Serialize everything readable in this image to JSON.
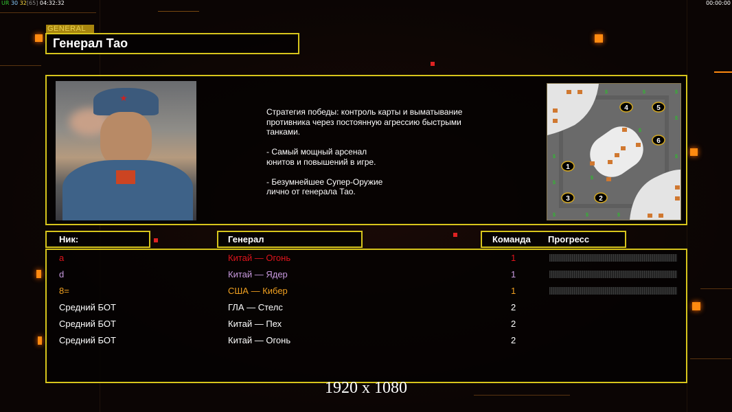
{
  "status_bar": {
    "ur": "UR",
    "v1": "30",
    "v2": "32",
    "bracket": "[65]",
    "clock": "04:32:32",
    "timer": "00:00:00"
  },
  "general": {
    "tab_label": "GENERAL",
    "title": "Генерал Тао",
    "description": "Стратегия победы: контроль карты и выматывание\n противника через постоянную агрессию быстрыми\n танками.\n\n- Самый мощный арсенал\nюнитов и повышений в игре.\n\n- Безумнейшее Супер-Оружие\nлично от генерала Тао."
  },
  "map": {
    "start_positions": [
      "1",
      "2",
      "3",
      "4",
      "5",
      "6"
    ]
  },
  "columns": {
    "nick": "Ник:",
    "general": "Генерал",
    "team": "Команда",
    "progress": "Прогресс"
  },
  "players": [
    {
      "nick": "a",
      "general": "Китай — Огонь",
      "team": "1",
      "color": "#e0141c",
      "progress": 0
    },
    {
      "nick": "d",
      "general": "Китай — Ядер",
      "team": "1",
      "color": "#c89ae0",
      "progress": 0
    },
    {
      "nick": "8=",
      "general": "США — Кибер",
      "team": "1",
      "color": "#f0a020",
      "progress": 0
    },
    {
      "nick": "Средний БОТ",
      "general": "ГЛА — Стелс",
      "team": "2",
      "color": "#ffffff"
    },
    {
      "nick": "Средний БОТ",
      "general": "Китай — Пех",
      "team": "2",
      "color": "#ffffff"
    },
    {
      "nick": "Средний БОТ",
      "general": "Китай — Огонь",
      "team": "2",
      "color": "#ffffff"
    }
  ],
  "resolution": "1920 x 1080",
  "colors": {
    "accent": "#d7c51c",
    "orange": "#ff8a10"
  }
}
